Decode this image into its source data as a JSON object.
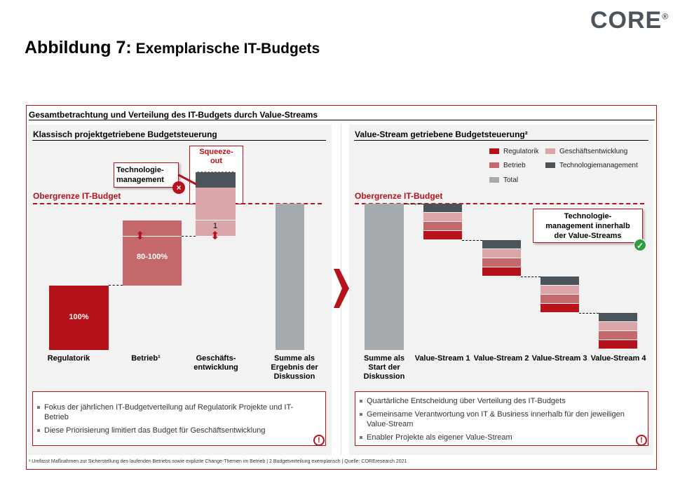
{
  "logo": "CORE",
  "title": {
    "prefix": "Abbildung 7:",
    "text": " Exemplarische IT-Budgets"
  },
  "frame_title": "Gesamtbetrachtung und Verteilung des IT-Budgets durch Value-Streams",
  "colors": {
    "regulatorik": "#b5121b",
    "betrieb": "#c4686c",
    "geschaeft": "#dba6aa",
    "technologie": "#4b535b",
    "total": "#a5aaaf",
    "accent": "#b5121b"
  },
  "left": {
    "subtitle": "Klassisch projektgetriebene Budgetsteuerung",
    "limit_label": "Obergrenze IT-Budget",
    "squeeze": "Squeeze-out",
    "callout": "Technologie-management",
    "reg_value": "100%",
    "betrieb_value": "80-100%",
    "geschaeft_note": "1",
    "categories": [
      "Regulatorik",
      "Betrieb¹",
      "Geschäfts-entwicklung",
      "Summe als Ergebnis der Diskussion"
    ],
    "bullets": [
      "Fokus der jährlichen IT-Budgetverteilung auf Regulatorik Projekte und IT-Betrieb",
      "Diese Priorisierung limitiert das Budget für Geschäftsentwicklung"
    ]
  },
  "right": {
    "subtitle": "Value-Stream getriebene Budgetsteuerung²",
    "limit_label": "Obergrenze IT-Budget",
    "legend": [
      "Regulatorik",
      "Geschäftsentwicklung",
      "Betrieb",
      "Technologiemanagement",
      "Total"
    ],
    "callout": "Technologie-management innerhalb der Value-Streams",
    "categories": [
      "Summe als Start der Diskussion",
      "Value-Stream 1",
      "Value-Stream 2",
      "Value-Stream 3",
      "Value-Stream 4"
    ],
    "bullets": [
      "Quartärliche Entscheidung über Verteilung des IT-Budgets",
      "Gemeinsame Verantwortung von IT & Business innerhalb für den jeweiligen Value-Stream",
      "Enabler Projekte als eigener Value-Stream"
    ]
  },
  "footnote": "¹ Umfasst Maßnahmen zur Sicherstellung des laufenden Betriebs sowie explizite Change-Themen im Betrieb | 2 Budgetverteilung exemplarisch | Quelle: COREresearch 2021",
  "icons": {
    "warning": "!",
    "cross": "×",
    "check": "✓"
  }
}
